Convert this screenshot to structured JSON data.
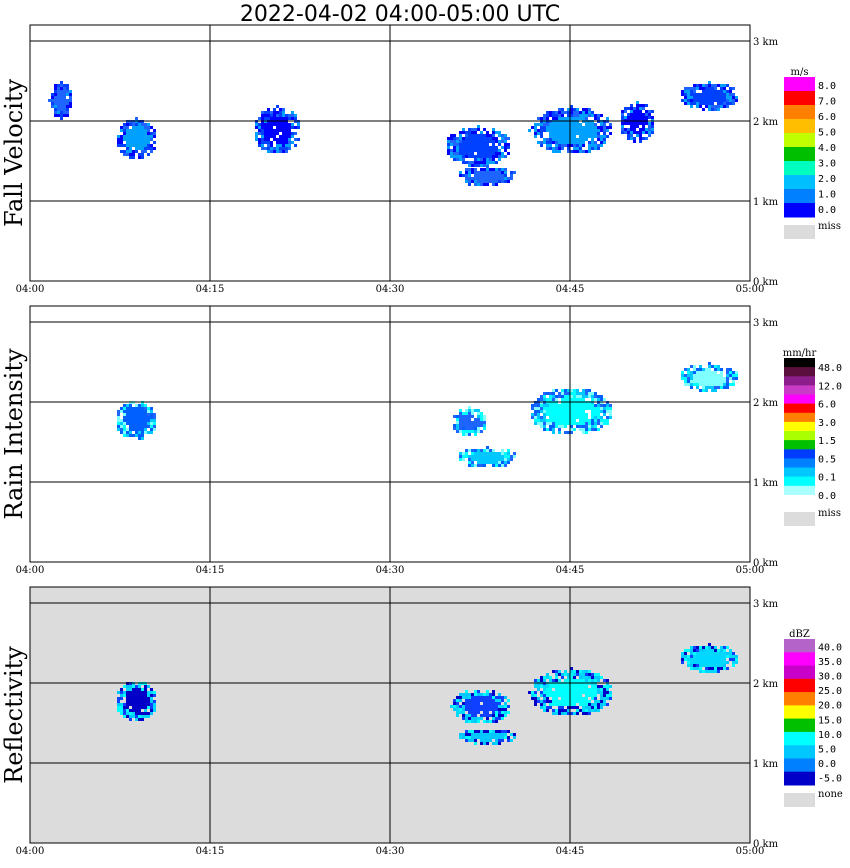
{
  "title": "2022-04-02  04:00-05:00 UTC",
  "chart_data": [
    {
      "type": "heatmap",
      "panel": "Fall Velocity",
      "x_tick_labels": [
        "04:00",
        "04:15",
        "04:30",
        "04:45",
        "05:00"
      ],
      "y_tick_labels": [
        "0 km",
        "1 km",
        "2 km",
        "3 km"
      ],
      "x_range": [
        "04:00",
        "05:00"
      ],
      "y_range_km": [
        0,
        3.3
      ],
      "background": "#ffffff",
      "legend": {
        "unit": "m/s",
        "labels": [
          "8.0",
          "7.0",
          "6.0",
          "5.0",
          "4.0",
          "3.0",
          "2.0",
          "1.0",
          "0.0"
        ],
        "colors": [
          "#ff00ff",
          "#ff0000",
          "#ff7f00",
          "#ffbf00",
          "#bfff00",
          "#00bf00",
          "#00ffbf",
          "#00bfff",
          "#007fff",
          "#0000ff"
        ],
        "miss_label": "miss",
        "miss_color": "#dcdcdc"
      },
      "echoes": [
        {
          "x": [
            "04:01:30",
            "04:03:30"
          ],
          "y_km": [
            2.05,
            2.5
          ],
          "value": "0-1"
        },
        {
          "x": [
            "04:07:00",
            "04:10:30"
          ],
          "y_km": [
            1.55,
            2.05
          ],
          "value": "0-1"
        },
        {
          "x": [
            "04:18:30",
            "04:22:30"
          ],
          "y_km": [
            1.6,
            2.2
          ],
          "value": "0-1"
        },
        {
          "x": [
            "04:34:30",
            "04:40:00"
          ],
          "y_km": [
            1.45,
            1.95
          ],
          "value": "0-1"
        },
        {
          "x": [
            "04:35:30",
            "04:40:30"
          ],
          "y_km": [
            1.2,
            1.45
          ],
          "value": "0-1"
        },
        {
          "x": [
            "04:41:30",
            "04:48:30"
          ],
          "y_km": [
            1.6,
            2.2
          ],
          "value": "0-2"
        },
        {
          "x": [
            "04:49:00",
            "04:52:00"
          ],
          "y_km": [
            1.75,
            2.25
          ],
          "value": "0-2"
        },
        {
          "x": [
            "04:54:00",
            "04:59:00"
          ],
          "y_km": [
            2.15,
            2.5
          ],
          "value": "0-2"
        }
      ]
    },
    {
      "type": "heatmap",
      "panel": "Rain Intensity",
      "x_tick_labels": [
        "04:00",
        "04:15",
        "04:30",
        "04:45",
        "05:00"
      ],
      "y_tick_labels": [
        "0 km",
        "1 km",
        "2 km",
        "3 km"
      ],
      "x_range": [
        "04:00",
        "05:00"
      ],
      "y_range_km": [
        0,
        3.3
      ],
      "background": "#ffffff",
      "legend": {
        "unit": "mm/hr",
        "labels": [
          "48.0",
          "12.0",
          "6.0",
          "3.0",
          "1.5",
          "0.5",
          "0.1",
          "0.0"
        ],
        "colors": [
          "#000000",
          "#5a0f3c",
          "#8c1e8c",
          "#c83cc8",
          "#ff00ff",
          "#ff0000",
          "#ff8000",
          "#ffff00",
          "#aaff00",
          "#00c000",
          "#003cff",
          "#007fff",
          "#00c8ff",
          "#00ffff",
          "#aaffff",
          "#ffffff"
        ],
        "miss_label": "miss",
        "miss_color": "#dcdcdc"
      },
      "echoes": [
        {
          "x": [
            "04:07:00",
            "04:10:30"
          ],
          "y_km": [
            1.55,
            2.05
          ],
          "value": "0.1-0.5"
        },
        {
          "x": [
            "04:35:00",
            "04:38:00"
          ],
          "y_km": [
            1.6,
            1.95
          ],
          "value": "0.5-3.0"
        },
        {
          "x": [
            "04:35:30",
            "04:40:30"
          ],
          "y_km": [
            1.2,
            1.45
          ],
          "value": "0.1"
        },
        {
          "x": [
            "04:41:30",
            "04:48:30"
          ],
          "y_km": [
            1.6,
            2.2
          ],
          "value": "0.1-1.5"
        },
        {
          "x": [
            "04:54:00",
            "04:59:00"
          ],
          "y_km": [
            2.15,
            2.5
          ],
          "value": "0.1"
        }
      ]
    },
    {
      "type": "heatmap",
      "panel": "Reflectivity",
      "x_tick_labels": [
        "04:00",
        "04:15",
        "04:30",
        "04:45",
        "05:00"
      ],
      "y_tick_labels": [
        "0 km",
        "1 km",
        "2 km",
        "3 km"
      ],
      "x_range": [
        "04:00",
        "05:00"
      ],
      "y_range_km": [
        0,
        3.3
      ],
      "background": "#dcdcdc",
      "legend": {
        "unit": "dBZ",
        "labels": [
          "40.0",
          "35.0",
          "30.0",
          "25.0",
          "20.0",
          "15.0",
          "10.0",
          "5.0",
          "0.0",
          "-5.0"
        ],
        "colors": [
          "#b464c8",
          "#ff00ff",
          "#c800c8",
          "#ff0000",
          "#ff8000",
          "#ffff00",
          "#00c000",
          "#00ffff",
          "#00c8ff",
          "#0080ff",
          "#0000c8"
        ],
        "miss_label": "none",
        "miss_color": "#dcdcdc"
      },
      "echoes": [
        {
          "x": [
            "04:07:00",
            "04:10:30"
          ],
          "y_km": [
            1.55,
            2.05
          ],
          "value": "-5-5"
        },
        {
          "x": [
            "04:35:00",
            "04:40:00"
          ],
          "y_km": [
            1.5,
            1.95
          ],
          "value": "5-15"
        },
        {
          "x": [
            "04:35:30",
            "04:40:30"
          ],
          "y_km": [
            1.25,
            1.45
          ],
          "value": "-5-5"
        },
        {
          "x": [
            "04:41:30",
            "04:48:30"
          ],
          "y_km": [
            1.6,
            2.2
          ],
          "value": "5-10"
        },
        {
          "x": [
            "04:54:00",
            "04:59:00"
          ],
          "y_km": [
            2.15,
            2.5
          ],
          "value": "0-10"
        }
      ]
    }
  ]
}
